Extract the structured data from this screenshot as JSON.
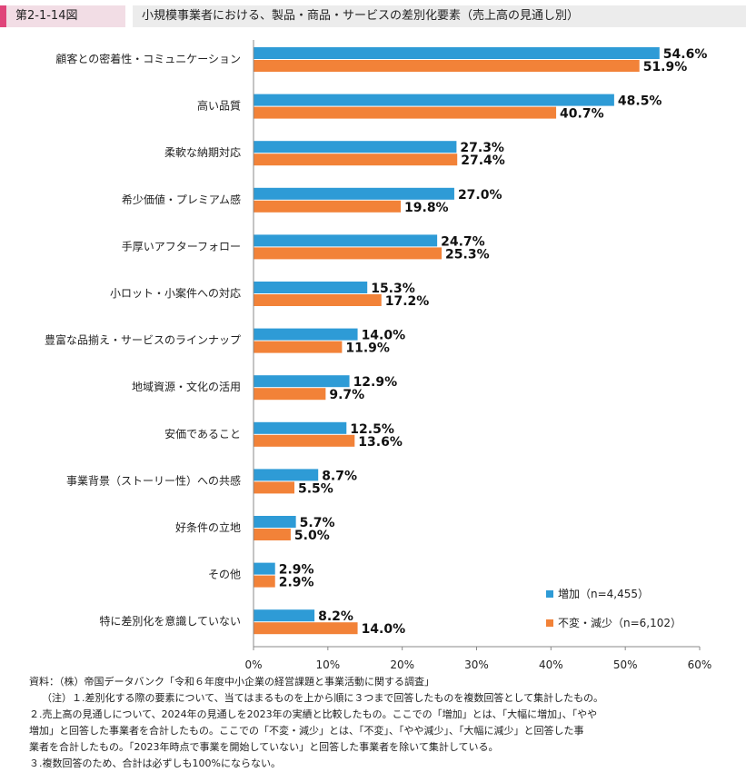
{
  "figure": {
    "id": "第2-1-14図",
    "title": "小規模事業者における、製品・商品・サービスの差別化要素（売上高の見通し別）"
  },
  "chart_data": {
    "type": "bar",
    "orientation": "horizontal",
    "categories": [
      "顧客との密着性・コミュニケーション",
      "高い品質",
      "柔軟な納期対応",
      "希少価値・プレミアム感",
      "手厚いアフターフォロー",
      "小ロット・小案件への対応",
      "豊富な品揃え・サービスのラインナップ",
      "地域資源・文化の活用",
      "安価であること",
      "事業背景（ストーリー性）への共感",
      "好条件の立地",
      "その他",
      "特に差別化を意識していない"
    ],
    "series": [
      {
        "name": "増加（n=4,455）",
        "color": "#2e9bd6",
        "values": [
          54.6,
          48.5,
          27.3,
          27.0,
          24.7,
          15.3,
          14.0,
          12.9,
          12.5,
          8.7,
          5.7,
          2.9,
          8.2
        ],
        "labels": [
          "54.6%",
          "48.5%",
          "27.3%",
          "27.0%",
          "24.7%",
          "15.3%",
          "14.0%",
          "12.9%",
          "12.5%",
          "8.7%",
          "5.7%",
          "2.9%",
          "8.2%"
        ]
      },
      {
        "name": "不変・減少（n=6,102）",
        "color": "#f28238",
        "values": [
          51.9,
          40.7,
          27.4,
          19.8,
          25.3,
          17.2,
          11.9,
          9.7,
          13.6,
          5.5,
          5.0,
          2.9,
          14.0
        ],
        "labels": [
          "51.9%",
          "40.7%",
          "27.4%",
          "19.8%",
          "25.3%",
          "17.2%",
          "11.9%",
          "9.7%",
          "13.6%",
          "5.5%",
          "5.0%",
          "2.9%",
          "14.0%"
        ]
      }
    ],
    "xlim": [
      0,
      60
    ],
    "xticks": [
      0,
      10,
      20,
      30,
      40,
      50,
      60
    ],
    "xtick_labels": [
      "0%",
      "10%",
      "20%",
      "30%",
      "40%",
      "50%",
      "60%"
    ],
    "legend_position": "bottom-right",
    "grid": false
  },
  "notes": {
    "source": "資料：（株）帝国データバンク「令和６年度中小企業の経営課題と事業活動に関する調査」",
    "note1": "（注）１.差別化する際の要素について、当てはまるものを上から順に３つまで回答したものを複数回答として集計したもの。",
    "note2a": "２.売上高の見通しについて、2024年の見通しを2023年の実績と比較したもの。ここでの「増加」とは、「大幅に増加」、「やや",
    "note2b": "増加」と回答した事業者を合計したもの。ここでの「不変・減少」とは、「不変」、「やや減少」、「大幅に減少」と回答した事",
    "note2c": "業者を合計したもの。「2023年時点で事業を開始していない」と回答した事業者を除いて集計している。",
    "note3": "３.複数回答のため、合計は必ずしも100%にならない。"
  }
}
